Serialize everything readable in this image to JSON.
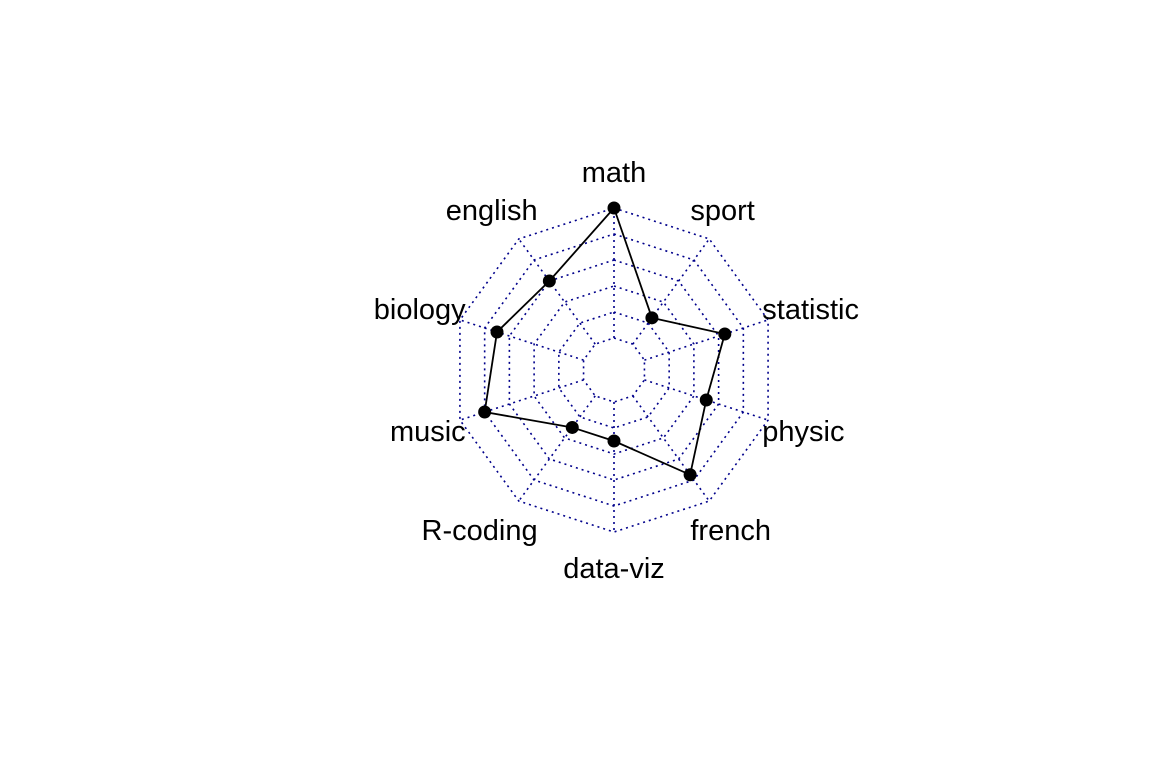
{
  "chart_data": {
    "type": "radar",
    "axes": [
      "math",
      "sport",
      "statistic",
      "physic",
      "french",
      "data-viz",
      "R-coding",
      "music",
      "biology",
      "english"
    ],
    "axis_order": "clockwise from top",
    "range": [
      0,
      20
    ],
    "grid_levels": 5,
    "grid_style": "dotted",
    "series": [
      {
        "values": [
          20,
          5,
          13,
          10,
          15,
          6,
          6,
          16,
          14,
          12
        ]
      }
    ],
    "colors": {
      "grid": "#00008b",
      "series": "#000000",
      "points": "#000000"
    }
  }
}
